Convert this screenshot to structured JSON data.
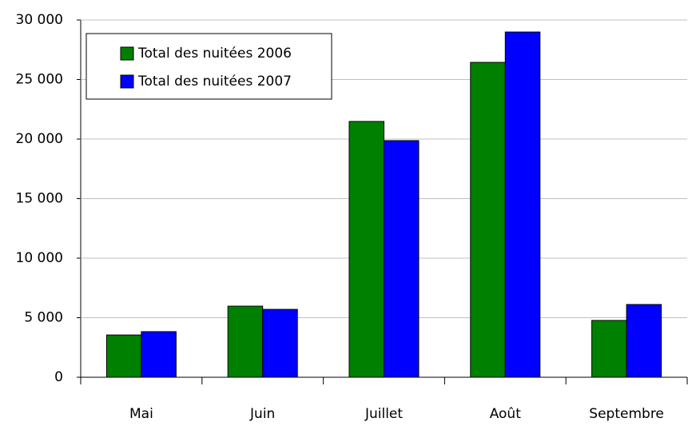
{
  "chart_data": {
    "type": "bar",
    "categories": [
      "Mai",
      "Juin",
      "Juillet",
      "Août",
      "Septembre"
    ],
    "series": [
      {
        "name": "Total des nuitées 2006",
        "color": "#008000",
        "values": [
          3550,
          5970,
          21480,
          26440,
          4770
        ]
      },
      {
        "name": "Total des nuitées 2007",
        "color": "#0000ff",
        "values": [
          3830,
          5700,
          19870,
          28990,
          6110
        ]
      }
    ],
    "ylim": [
      0,
      30000
    ],
    "yticks": [
      0,
      {
        "value": 5000,
        "label": "5 000"
      },
      {
        "value": 10000,
        "label": "10 000"
      },
      {
        "value": 15000,
        "label": "15 000"
      },
      {
        "value": 20000,
        "label": "20 000"
      },
      {
        "value": 25000,
        "label": "25 000"
      },
      {
        "value": 30000,
        "label": "30 000"
      }
    ],
    "grid": true,
    "legend": "upper-left"
  }
}
